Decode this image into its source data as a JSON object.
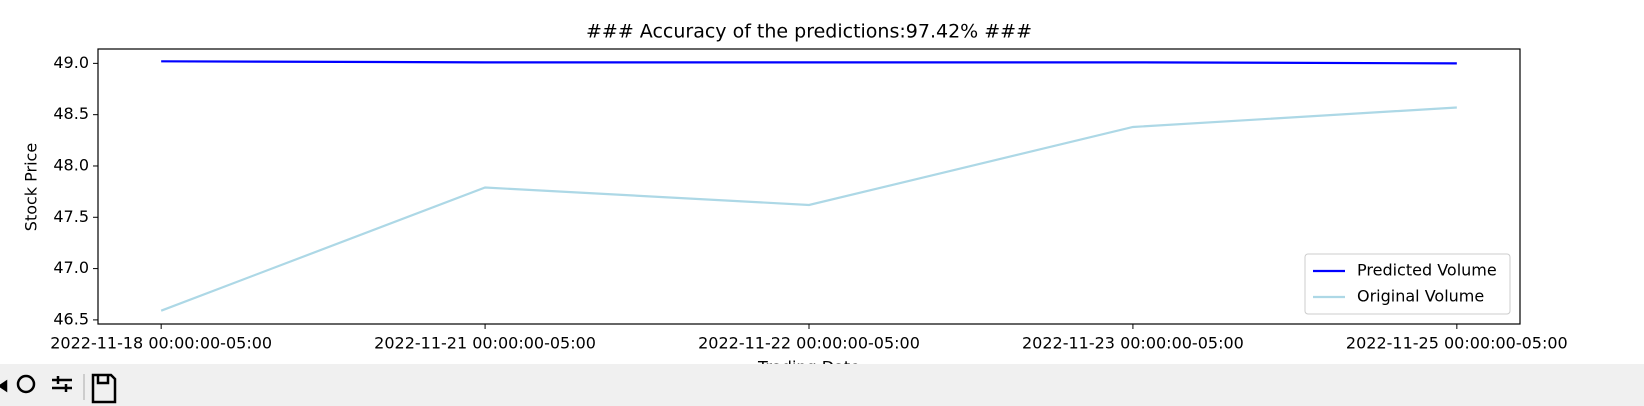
{
  "chart_data": {
    "type": "line",
    "title": "### Accuracy of the predictions:97.42% ###",
    "x_label": "Trading Date",
    "y_label": "Stock Price",
    "categories": [
      "2022-11-18 00:00:00-05:00",
      "2022-11-21 00:00:00-05:00",
      "2022-11-22 00:00:00-05:00",
      "2022-11-23 00:00:00-05:00",
      "2022-11-25 00:00:00-05:00"
    ],
    "series": [
      {
        "name": "Predicted Volume",
        "color": "#0000ff",
        "values": [
          49.02,
          49.01,
          49.01,
          49.01,
          49.0
        ]
      },
      {
        "name": "Original Volume",
        "color": "#add8e6",
        "values": [
          46.59,
          47.79,
          47.62,
          48.38,
          48.57
        ]
      }
    ],
    "ylim": [
      46.46,
      49.14
    ],
    "yticks": [
      {
        "value": 46.5,
        "label": "46.5"
      },
      {
        "value": 47,
        "label": "47.0"
      },
      {
        "value": 47.5,
        "label": "47.5"
      },
      {
        "value": 48,
        "label": "48.0"
      },
      {
        "value": 48.5,
        "label": "48.5"
      },
      {
        "value": 49,
        "label": "49.0"
      }
    ],
    "legend": "lower right"
  }
}
